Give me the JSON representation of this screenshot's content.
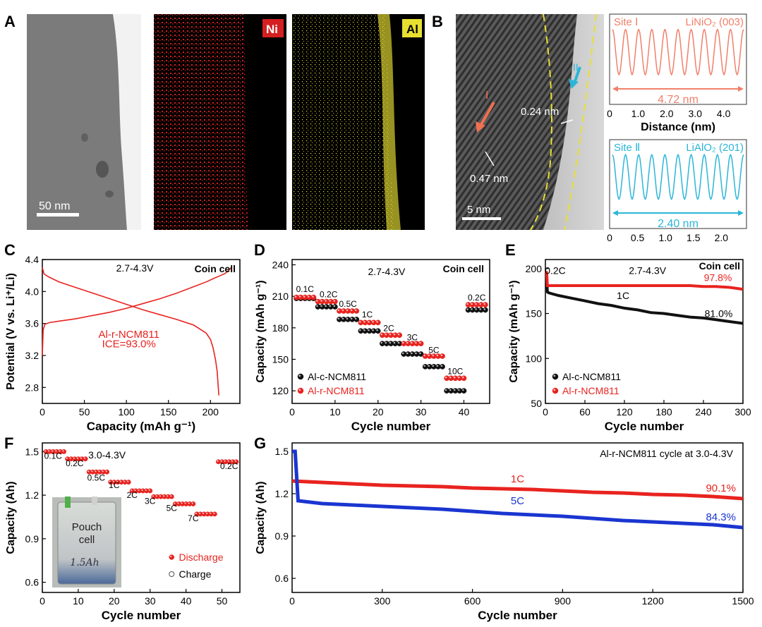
{
  "panel_labels": {
    "A": "A",
    "B": "B",
    "C": "C",
    "D": "D",
    "E": "E",
    "F": "F",
    "G": "G"
  },
  "micrographs": {
    "a_scalebar": "50 nm",
    "ni_tag": "Ni",
    "al_tag": "Al",
    "b_scalebar": "5 nm",
    "b_region_I": "I",
    "b_region_II": "II",
    "b_d1": "0.24 nm",
    "b_d2": "0.47 nm",
    "pouch_text_1": "Pouch",
    "pouch_text_2": "cell",
    "pouch_text_3": "1.5Ah"
  },
  "colors": {
    "red": "#e8231f",
    "blue": "#1a35d0",
    "black": "#111111",
    "salmon": "#f0806a",
    "cyan": "#2bb6d8",
    "ni": "#d42020",
    "al": "#e8e030"
  },
  "chart_data": [
    {
      "id": "B1",
      "type": "line",
      "site_label": "Site Ⅰ",
      "phase_label": "LiNiO₂ (003)",
      "distance_label": "4.72 nm",
      "xlabel": "Distance (nm)",
      "xlim": [
        0,
        4.8
      ],
      "xticks": [
        "0",
        "1.0",
        "2.0",
        "3.0",
        "4.0"
      ],
      "periods": 10
    },
    {
      "id": "B2",
      "type": "line",
      "site_label": "Site Ⅱ",
      "phase_label": "LiAlO₂ (201)",
      "distance_label": "2.40 nm",
      "xlabel": "",
      "xlim": [
        0,
        2.45
      ],
      "xticks": [
        "0",
        "0.5",
        "1.0",
        "1.5",
        "2.0"
      ],
      "periods": 10
    },
    {
      "id": "C",
      "type": "line",
      "title": "Coin cell",
      "voltage": "2.7-4.3V",
      "xlabel": "Capacity (mAh g⁻¹)",
      "ylabel": "Potential (V vs. Li⁺/Li)",
      "xlim": [
        0,
        235
      ],
      "ylim": [
        2.6,
        4.4
      ],
      "xticks": [
        0,
        50,
        100,
        150,
        200
      ],
      "yticks": [
        2.8,
        3.2,
        3.6,
        4.0,
        4.4
      ],
      "legend": "Al-r-NCM811",
      "annotation": "ICE=93.0%",
      "series": [
        {
          "name": "charge",
          "x": [
            0,
            1,
            3,
            8,
            20,
            40,
            60,
            80,
            100,
            120,
            140,
            160,
            180,
            195,
            205,
            212,
            218,
            222,
            225
          ],
          "y": [
            3.2,
            3.52,
            3.59,
            3.61,
            3.63,
            3.66,
            3.7,
            3.74,
            3.79,
            3.85,
            3.91,
            3.98,
            4.06,
            4.12,
            4.17,
            4.2,
            4.23,
            4.27,
            4.3
          ]
        },
        {
          "name": "discharge",
          "x": [
            0,
            2,
            8,
            20,
            40,
            60,
            80,
            100,
            120,
            140,
            160,
            180,
            195,
            200,
            203,
            206,
            208,
            209,
            210
          ],
          "y": [
            4.3,
            4.22,
            4.18,
            4.12,
            4.05,
            3.98,
            3.91,
            3.84,
            3.77,
            3.71,
            3.65,
            3.58,
            3.48,
            3.4,
            3.3,
            3.15,
            3.0,
            2.85,
            2.7
          ]
        }
      ]
    },
    {
      "id": "D",
      "type": "scatter",
      "title": "Coin cell",
      "voltage": "2.7-4.3V",
      "xlabel": "Cycle number",
      "ylabel": "Capacity (mAh g⁻¹)",
      "xlim": [
        0,
        46
      ],
      "ylim": [
        108,
        245
      ],
      "xticks": [
        0,
        10,
        20,
        30,
        40
      ],
      "yticks": [
        120,
        150,
        180,
        210,
        240
      ],
      "rate_labels": [
        {
          "text": "0.1C",
          "x": 3,
          "y": 214
        },
        {
          "text": "0.2C",
          "x": 8.5,
          "y": 209
        },
        {
          "text": "0.5C",
          "x": 13,
          "y": 200
        },
        {
          "text": "1C",
          "x": 17.5,
          "y": 190
        },
        {
          "text": "2C",
          "x": 22.5,
          "y": 177
        },
        {
          "text": "3C",
          "x": 28,
          "y": 168
        },
        {
          "text": "5C",
          "x": 33,
          "y": 156
        },
        {
          "text": "10C",
          "x": 38,
          "y": 136
        },
        {
          "text": "0.2C",
          "x": 43,
          "y": 206
        }
      ],
      "series": [
        {
          "name": "Al-c-NCM811",
          "color": "black",
          "segments": [
            {
              "x0": 1,
              "n": 5,
              "v": 208
            },
            {
              "x0": 6,
              "n": 5,
              "v": 200
            },
            {
              "x0": 11,
              "n": 5,
              "v": 188
            },
            {
              "x0": 16,
              "n": 5,
              "v": 177
            },
            {
              "x0": 21,
              "n": 5,
              "v": 165
            },
            {
              "x0": 26,
              "n": 5,
              "v": 155
            },
            {
              "x0": 31,
              "n": 5,
              "v": 143
            },
            {
              "x0": 36,
              "n": 5,
              "v": 120
            },
            {
              "x0": 41,
              "n": 5,
              "v": 197
            }
          ]
        },
        {
          "name": "Al-r-NCM811",
          "color": "red",
          "segments": [
            {
              "x0": 1,
              "n": 5,
              "v": 209
            },
            {
              "x0": 6,
              "n": 5,
              "v": 205
            },
            {
              "x0": 11,
              "n": 5,
              "v": 196
            },
            {
              "x0": 16,
              "n": 5,
              "v": 185
            },
            {
              "x0": 21,
              "n": 5,
              "v": 173
            },
            {
              "x0": 26,
              "n": 5,
              "v": 165
            },
            {
              "x0": 31,
              "n": 5,
              "v": 153
            },
            {
              "x0": 36,
              "n": 5,
              "v": 132
            },
            {
              "x0": 41,
              "n": 5,
              "v": 202
            }
          ]
        }
      ]
    },
    {
      "id": "E",
      "type": "scatter",
      "title": "Coin cell",
      "voltage": "2.7-4.3V",
      "xlabel": "Cycle number",
      "ylabel": "Capacity (mAh g⁻¹)",
      "xlim": [
        0,
        300
      ],
      "ylim": [
        50,
        210
      ],
      "xticks": [
        0,
        60,
        120,
        180,
        240,
        300
      ],
      "yticks": [
        50,
        100,
        150,
        200
      ],
      "rate_labels": [
        {
          "text": "0.2C",
          "x": 15,
          "y": 194
        },
        {
          "text": "1C",
          "x": 118,
          "y": 166
        }
      ],
      "retention": [
        {
          "text": "97.8%",
          "color": "red",
          "x": 262,
          "y": 186
        },
        {
          "text": "81.0%",
          "color": "black",
          "x": 263,
          "y": 146
        }
      ],
      "series": [
        {
          "name": "Al-c-NCM811",
          "color": "black",
          "x": [
            1,
            2,
            3,
            5,
            10,
            20,
            40,
            60,
            80,
            100,
            120,
            140,
            160,
            180,
            200,
            220,
            240,
            260,
            280,
            300
          ],
          "y": [
            195,
            193,
            174,
            173,
            172,
            170,
            167,
            164,
            161,
            159,
            156,
            154,
            151,
            150,
            148,
            146,
            145,
            143,
            141,
            139
          ]
        },
        {
          "name": "Al-r-NCM811",
          "color": "red",
          "x": [
            1,
            2,
            3,
            5,
            10,
            20,
            40,
            60,
            80,
            100,
            120,
            140,
            160,
            180,
            200,
            220,
            240,
            260,
            280,
            300
          ],
          "y": [
            197,
            195,
            181,
            181,
            181,
            181,
            181,
            181,
            181,
            181,
            181,
            181,
            181,
            181,
            181,
            181,
            180,
            180,
            179,
            177
          ]
        }
      ]
    },
    {
      "id": "F",
      "type": "scatter",
      "voltage": "3.0-4.3V",
      "xlabel": "Cycle number",
      "ylabel": "Capacity (Ah)",
      "xlim": [
        0,
        55
      ],
      "ylim": [
        0.53,
        1.56
      ],
      "xticks": [
        0,
        10,
        20,
        30,
        40,
        50
      ],
      "yticks": [
        0.6,
        0.9,
        1.2,
        1.5
      ],
      "rate_labels": [
        {
          "text": "0.1C",
          "x": 3,
          "y": 1.45
        },
        {
          "text": "0.2C",
          "x": 9,
          "y": 1.4
        },
        {
          "text": "0.5C",
          "x": 15,
          "y": 1.3
        },
        {
          "text": "1C",
          "x": 20,
          "y": 1.25
        },
        {
          "text": "2C",
          "x": 25,
          "y": 1.18
        },
        {
          "text": "3C",
          "x": 30,
          "y": 1.14
        },
        {
          "text": "5C",
          "x": 36,
          "y": 1.09
        },
        {
          "text": "7C",
          "x": 42,
          "y": 1.02
        },
        {
          "text": "0.2C",
          "x": 52,
          "y": 1.38
        }
      ],
      "series": [
        {
          "name": "Discharge",
          "color": "red",
          "segments": [
            {
              "x0": 1,
              "n": 6,
              "v": 1.5
            },
            {
              "x0": 7,
              "n": 6,
              "v": 1.45
            },
            {
              "x0": 13,
              "n": 6,
              "v": 1.36
            },
            {
              "x0": 19,
              "n": 6,
              "v": 1.29
            },
            {
              "x0": 25,
              "n": 6,
              "v": 1.23
            },
            {
              "x0": 31,
              "n": 6,
              "v": 1.19
            },
            {
              "x0": 37,
              "n": 6,
              "v": 1.14
            },
            {
              "x0": 43,
              "n": 6,
              "v": 1.07
            },
            {
              "x0": 49,
              "n": 6,
              "v": 1.43
            }
          ]
        },
        {
          "name": "Charge",
          "color": "open",
          "segments": []
        }
      ]
    },
    {
      "id": "G",
      "type": "line",
      "title": "Al-r-NCM811 cycle at 3.0-4.3V",
      "xlabel": "Cycle number",
      "ylabel": "Capacity (Ah)",
      "xlim": [
        0,
        1500
      ],
      "ylim": [
        0.5,
        1.56
      ],
      "xticks": [
        0,
        300,
        600,
        900,
        1200,
        1500
      ],
      "yticks": [
        0.6,
        0.9,
        1.2,
        1.5
      ],
      "series": [
        {
          "name": "1C",
          "color": "red",
          "retention": "90.1%",
          "x": [
            0,
            100,
            200,
            300,
            400,
            500,
            600,
            700,
            800,
            900,
            1000,
            1100,
            1200,
            1300,
            1400,
            1500
          ],
          "y": [
            1.29,
            1.28,
            1.27,
            1.26,
            1.255,
            1.25,
            1.24,
            1.235,
            1.23,
            1.22,
            1.21,
            1.205,
            1.195,
            1.19,
            1.18,
            1.165
          ]
        },
        {
          "name": "5C",
          "color": "blue",
          "retention": "84.3%",
          "x": [
            0,
            10,
            20,
            100,
            200,
            300,
            400,
            500,
            600,
            700,
            800,
            900,
            1000,
            1100,
            1200,
            1300,
            1400,
            1500
          ],
          "y": [
            1.5,
            1.5,
            1.15,
            1.13,
            1.12,
            1.11,
            1.1,
            1.09,
            1.075,
            1.06,
            1.05,
            1.04,
            1.025,
            1.01,
            1.0,
            0.99,
            0.98,
            0.96
          ]
        }
      ]
    }
  ]
}
